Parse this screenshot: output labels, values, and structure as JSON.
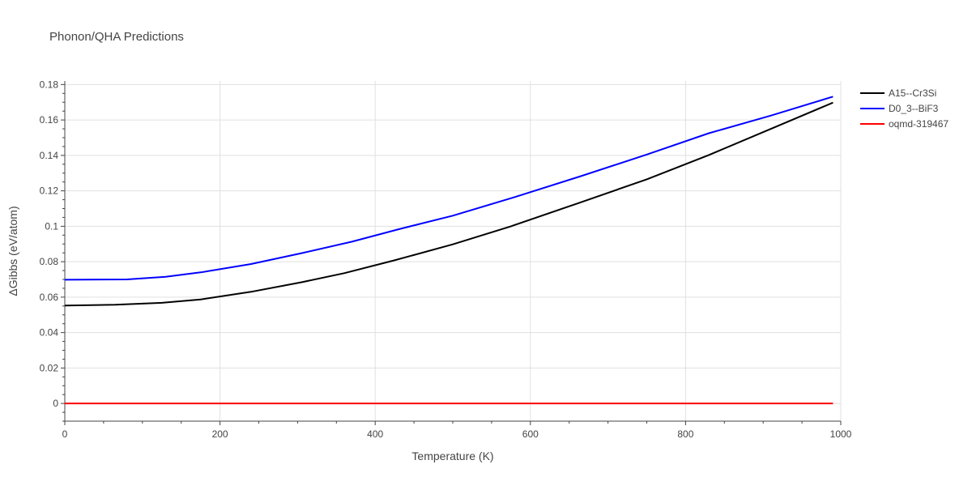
{
  "chart_data": {
    "type": "line",
    "title": "Phonon/QHA Predictions",
    "xlabel": "Temperature (K)",
    "ylabel": "ΔGibbs (eV/atom)",
    "xlim": [
      0,
      1000
    ],
    "ylim": [
      -0.01,
      0.182
    ],
    "x_ticks": [
      0,
      200,
      400,
      600,
      800,
      1000
    ],
    "x_tick_labels": [
      "0",
      "200",
      "400",
      "600",
      "800",
      "1000"
    ],
    "y_ticks": [
      0,
      0.02,
      0.04,
      0.06,
      0.08,
      0.1,
      0.12,
      0.14,
      0.16,
      0.18
    ],
    "y_tick_labels": [
      "0",
      "0.02",
      "0.04",
      "0.06",
      "0.08",
      "0.1",
      "0.12",
      "0.14",
      "0.16",
      "0.18"
    ],
    "grid": true,
    "legend_position": "top-right",
    "series": [
      {
        "name": "A15--Cr3Si",
        "color": "#000000",
        "x": [
          0,
          65,
          125,
          175,
          240,
          305,
          360,
          425,
          500,
          575,
          660,
          750,
          830,
          910,
          990
        ],
        "y": [
          0.0553,
          0.0557,
          0.0568,
          0.0587,
          0.063,
          0.0684,
          0.0735,
          0.0808,
          0.0898,
          0.1,
          0.1128,
          0.1265,
          0.1402,
          0.155,
          0.1698
        ]
      },
      {
        "name": "D0_3--BiF3",
        "color": "#0000ff",
        "x": [
          0,
          80,
          130,
          175,
          240,
          305,
          370,
          430,
          500,
          580,
          665,
          750,
          830,
          910,
          990
        ],
        "y": [
          0.0698,
          0.07,
          0.0715,
          0.074,
          0.0787,
          0.0848,
          0.0913,
          0.0983,
          0.106,
          0.1165,
          0.1283,
          0.1405,
          0.1525,
          0.1625,
          0.1732
        ]
      },
      {
        "name": "oqmd-319467",
        "color": "#ff0000",
        "x": [
          0,
          990
        ],
        "y": [
          0,
          0
        ]
      }
    ]
  }
}
